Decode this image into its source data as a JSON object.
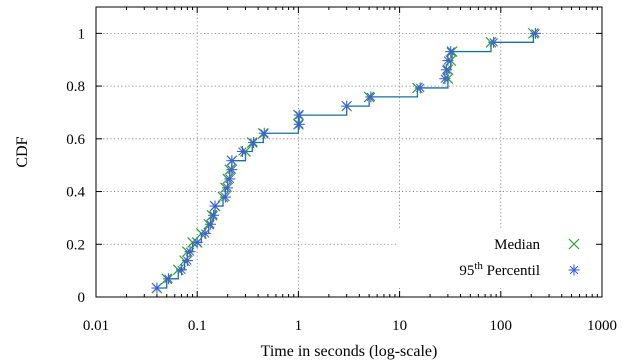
{
  "chart_data": {
    "type": "line",
    "xlabel": "Time in seconds (log-scale)",
    "ylabel": "CDF",
    "xscale": "log",
    "xlim": [
      0.01,
      1000
    ],
    "ylim": [
      0,
      1.1
    ],
    "grid": true,
    "legend_position": "bottom-right",
    "x_tick_labels": [
      "0.01",
      "0.1",
      "1",
      "10",
      "100",
      "1000"
    ],
    "x_tick_values": [
      0.01,
      0.1,
      1,
      10,
      100,
      1000
    ],
    "y_tick_labels": [
      "0",
      "0.2",
      "0.4",
      "0.6",
      "0.8",
      "1"
    ],
    "y_tick_values": [
      0,
      0.2,
      0.4,
      0.6,
      0.8,
      1
    ],
    "legend": {
      "median": "Median",
      "p95_prefix": "95",
      "p95_sup": "th",
      "p95_suffix": " Percentil"
    },
    "colors": {
      "median": "#2ca02c",
      "p95": "#4060d8",
      "step_line": "#1f6f9a"
    },
    "series": [
      {
        "key": "median",
        "marker": "x",
        "points": [
          [
            0.04,
            0.034
          ],
          [
            0.05,
            0.069
          ],
          [
            0.065,
            0.103
          ],
          [
            0.075,
            0.138
          ],
          [
            0.08,
            0.172
          ],
          [
            0.09,
            0.207
          ],
          [
            0.1,
            0.207
          ],
          [
            0.11,
            0.241
          ],
          [
            0.13,
            0.276
          ],
          [
            0.14,
            0.31
          ],
          [
            0.15,
            0.345
          ],
          [
            0.18,
            0.379
          ],
          [
            0.19,
            0.414
          ],
          [
            0.2,
            0.448
          ],
          [
            0.21,
            0.483
          ],
          [
            0.22,
            0.517
          ],
          [
            0.3,
            0.552
          ],
          [
            0.35,
            0.586
          ],
          [
            0.45,
            0.621
          ],
          [
            1.0,
            0.655
          ],
          [
            1.0,
            0.69
          ],
          [
            3.0,
            0.724
          ],
          [
            5.0,
            0.759
          ],
          [
            15.0,
            0.793
          ],
          [
            30.0,
            0.828
          ],
          [
            30.0,
            0.862
          ],
          [
            32.0,
            0.897
          ],
          [
            33.0,
            0.931
          ],
          [
            80.0,
            0.966
          ],
          [
            210.0,
            1.0
          ]
        ]
      },
      {
        "key": "p95",
        "marker": "asterisk",
        "points": [
          [
            0.04,
            0.034
          ],
          [
            0.052,
            0.069
          ],
          [
            0.07,
            0.103
          ],
          [
            0.08,
            0.138
          ],
          [
            0.085,
            0.172
          ],
          [
            0.1,
            0.207
          ],
          [
            0.12,
            0.241
          ],
          [
            0.135,
            0.276
          ],
          [
            0.145,
            0.31
          ],
          [
            0.15,
            0.345
          ],
          [
            0.19,
            0.379
          ],
          [
            0.2,
            0.414
          ],
          [
            0.21,
            0.448
          ],
          [
            0.22,
            0.483
          ],
          [
            0.22,
            0.517
          ],
          [
            0.28,
            0.552
          ],
          [
            0.36,
            0.586
          ],
          [
            0.46,
            0.621
          ],
          [
            1.02,
            0.655
          ],
          [
            1.02,
            0.69
          ],
          [
            3.0,
            0.724
          ],
          [
            5.2,
            0.759
          ],
          [
            16.0,
            0.793
          ],
          [
            28.0,
            0.828
          ],
          [
            29.0,
            0.862
          ],
          [
            30.0,
            0.897
          ],
          [
            32.0,
            0.931
          ],
          [
            85.0,
            0.966
          ],
          [
            220.0,
            1.0
          ]
        ]
      }
    ]
  }
}
